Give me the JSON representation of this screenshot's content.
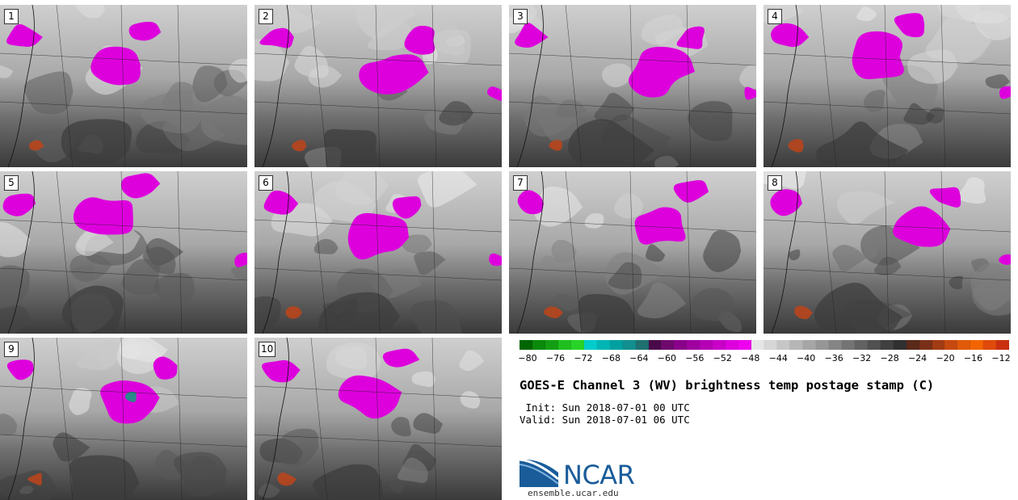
{
  "panels": [
    {
      "label": "1"
    },
    {
      "label": "2"
    },
    {
      "label": "3"
    },
    {
      "label": "4"
    },
    {
      "label": "5"
    },
    {
      "label": "6"
    },
    {
      "label": "7"
    },
    {
      "label": "8"
    },
    {
      "label": "9"
    },
    {
      "label": "10"
    }
  ],
  "colorbar": {
    "ticks": [
      "−80",
      "−76",
      "−72",
      "−68",
      "−64",
      "−60",
      "−56",
      "−52",
      "−48",
      "−44",
      "−40",
      "−36",
      "−32",
      "−28",
      "−24",
      "−20",
      "−16",
      "−12"
    ],
    "colors": [
      "#006600",
      "#0a8a0a",
      "#139f13",
      "#1fbf1f",
      "#27d427",
      "#00cccc",
      "#00b5b5",
      "#00a0a0",
      "#118f8f",
      "#1f7070",
      "#4a0a4a",
      "#6e0a6e",
      "#8a008a",
      "#a000a0",
      "#b500b5",
      "#c800c8",
      "#dd00dd",
      "#ee00ee",
      "#e6e6e6",
      "#d6d6d6",
      "#c6c6c6",
      "#b6b6b6",
      "#a6a6a6",
      "#969696",
      "#858585",
      "#747474",
      "#626262",
      "#515151",
      "#404040",
      "#303030",
      "#5a2a1a",
      "#7a3018",
      "#a23c14",
      "#c64a10",
      "#e05a08",
      "#f26400",
      "#e04a0a",
      "#c83010"
    ]
  },
  "title": "GOES-E Channel 3 (WV) brightness temp postage stamp (C)",
  "init": " Init: Sun 2018-07-01 00 UTC",
  "valid": "Valid: Sun 2018-07-01 06 UTC",
  "logo": {
    "text": "NCAR",
    "site": "ensemble.ucar.edu"
  },
  "colors": {
    "cold": "#dd00dd",
    "core": "#2a8a8a",
    "warm": "#b8451c"
  }
}
